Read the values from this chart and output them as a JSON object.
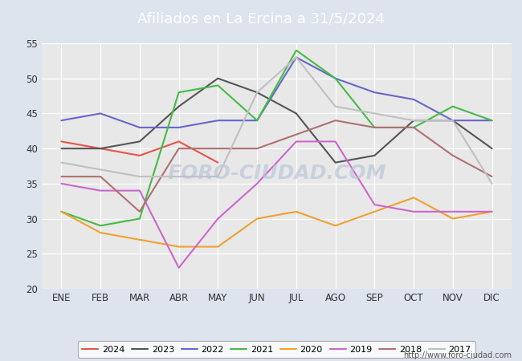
{
  "title": "Afiliados en La Ercina a 31/5/2024",
  "ylim": [
    20,
    55
  ],
  "yticks": [
    20,
    25,
    30,
    35,
    40,
    45,
    50,
    55
  ],
  "xtick_labels": [
    "ENE",
    "FEB",
    "MAR",
    "ABR",
    "MAY",
    "JUN",
    "JUL",
    "AGO",
    "SEP",
    "OCT",
    "NOV",
    "DIC"
  ],
  "plot_bg_color": "#e8e8e8",
  "fig_bg_color": "#dde4ee",
  "title_bg_color": "#5b8ed6",
  "watermark": "FORO-CIUDAD.COM",
  "url": "http://www.foro-ciudad.com",
  "series": [
    {
      "label": "2024",
      "color": "#e8534a",
      "linewidth": 1.5,
      "data": [
        41,
        40,
        39,
        41,
        38,
        null,
        null,
        null,
        null,
        null,
        null,
        null
      ]
    },
    {
      "label": "2023",
      "color": "#555555",
      "linewidth": 1.5,
      "data": [
        40,
        40,
        41,
        46,
        50,
        48,
        45,
        38,
        39,
        44,
        44,
        40
      ]
    },
    {
      "label": "2022",
      "color": "#6666cc",
      "linewidth": 1.5,
      "data": [
        44,
        45,
        43,
        43,
        44,
        44,
        53,
        50,
        48,
        47,
        44,
        44
      ]
    },
    {
      "label": "2021",
      "color": "#44bb44",
      "linewidth": 1.5,
      "data": [
        31,
        29,
        30,
        48,
        49,
        44,
        54,
        50,
        43,
        43,
        46,
        44
      ]
    },
    {
      "label": "2020",
      "color": "#f0a030",
      "linewidth": 1.5,
      "data": [
        31,
        28,
        27,
        26,
        26,
        30,
        31,
        29,
        31,
        33,
        30,
        31
      ]
    },
    {
      "label": "2019",
      "color": "#cc66cc",
      "linewidth": 1.5,
      "data": [
        35,
        34,
        34,
        23,
        30,
        35,
        41,
        41,
        32,
        31,
        31,
        31
      ]
    },
    {
      "label": "2018",
      "color": "#b07070",
      "linewidth": 1.5,
      "data": [
        36,
        36,
        31,
        40,
        40,
        40,
        42,
        44,
        43,
        43,
        39,
        36
      ]
    },
    {
      "label": "2017",
      "color": "#c0c0c0",
      "linewidth": 1.5,
      "data": [
        38,
        37,
        36,
        36,
        36,
        48,
        53,
        46,
        45,
        44,
        44,
        35
      ]
    }
  ]
}
